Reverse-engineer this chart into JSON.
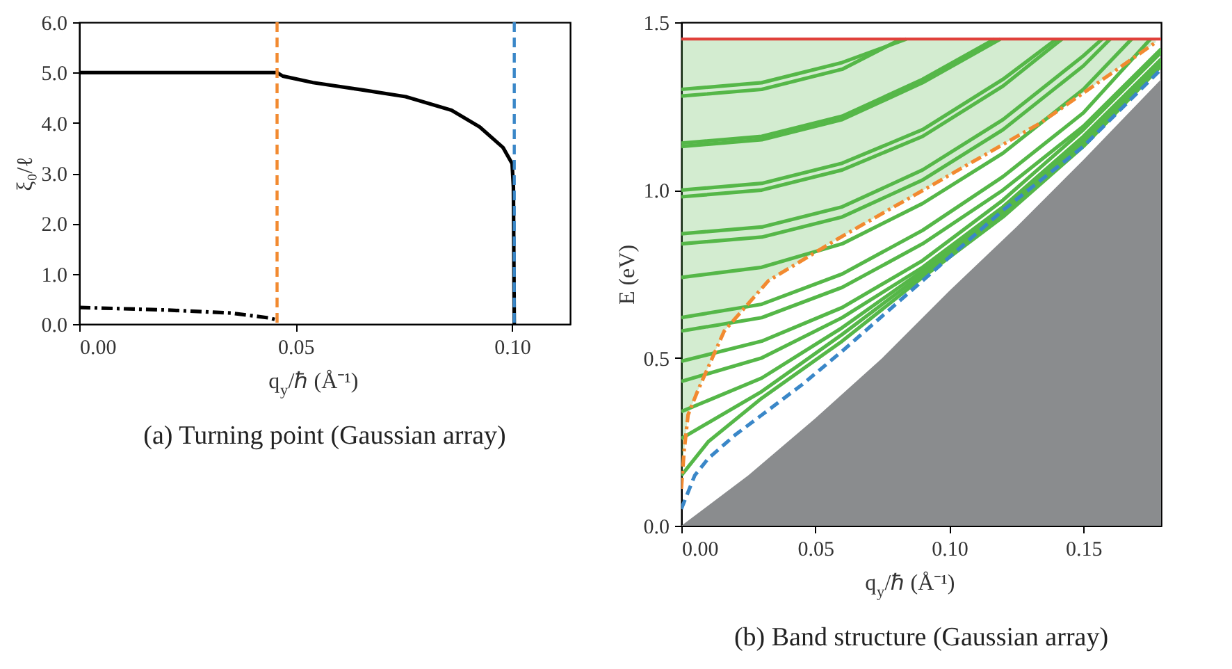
{
  "chart_data": [
    {
      "type": "line",
      "title": "(a) Turning point (Gaussian array)",
      "xlabel": "q$_{y}$/ℏ (Å⁻¹)",
      "ylabel": "ξ₀/ℓ",
      "xlim": [
        0,
        0.1134
      ],
      "ylim": [
        0,
        6
      ],
      "xticks": [
        {
          "value": 0,
          "label": "0.00"
        },
        {
          "value": 0.05,
          "label": "0.05"
        },
        {
          "value": 0.1,
          "label": "0.10"
        }
      ],
      "yticks": [
        {
          "value": 0,
          "label": "0.0"
        },
        {
          "value": 1,
          "label": "1.0"
        },
        {
          "value": 2,
          "label": "2.0"
        },
        {
          "value": 3,
          "label": "3.0"
        },
        {
          "value": 4,
          "label": "4.0"
        },
        {
          "value": 5,
          "label": "5.0"
        },
        {
          "value": 6,
          "label": "6.0"
        }
      ],
      "grid": false,
      "series": [
        {
          "color": "#000000",
          "line_style": "solid",
          "x": [
            0,
            0.0457,
            0.047,
            0.054,
            0.065,
            0.0754,
            0.086,
            0.0925,
            0.0979,
            0.1,
            0.1003,
            0.1005
          ],
          "values": [
            5.0,
            5.0,
            4.93,
            4.8,
            4.66,
            4.52,
            4.25,
            3.92,
            3.51,
            3.19,
            2.72,
            0
          ]
        },
        {
          "color": "#000000",
          "line_style": "dashdot",
          "x": [
            0,
            0.02,
            0.035,
            0.044,
            0.0457
          ],
          "values": [
            0.33,
            0.28,
            0.22,
            0.12,
            0.08
          ]
        }
      ],
      "ref_lines": [
        {
          "axis": "x",
          "value": 0.0457,
          "color": "#f28a30",
          "line_style": "dashed"
        },
        {
          "axis": "x",
          "value": 0.1005,
          "color": "#3a87c8",
          "line_style": "dashed"
        }
      ]
    },
    {
      "type": "line",
      "title": "(b) Band structure (Gaussian array)",
      "xlabel": "q$_{y}$/ℏ (Å⁻¹)",
      "ylabel": "E (eV)",
      "xlim": [
        0,
        0.179
      ],
      "ylim": [
        0,
        1.5
      ],
      "xticks": [
        {
          "value": 0,
          "label": "0.00"
        },
        {
          "value": 0.05,
          "label": "0.05"
        },
        {
          "value": 0.1,
          "label": "0.10"
        },
        {
          "value": 0.15,
          "label": "0.15"
        }
      ],
      "yticks": [
        {
          "value": 0,
          "label": "0.0"
        },
        {
          "value": 0.5,
          "label": "0.5"
        },
        {
          "value": 1,
          "label": "1.0"
        },
        {
          "value": 1.5,
          "label": "1.5"
        }
      ],
      "grid": false,
      "series": [
        {
          "type": "area",
          "color": "#8a8c8e",
          "x": [
            0,
            0.025,
            0.05,
            0.075,
            0.1,
            0.125,
            0.15,
            0.179
          ],
          "values": [
            0,
            0.15,
            0.32,
            0.5,
            0.7,
            0.89,
            1.09,
            1.33
          ]
        },
        {
          "color": "#55b748",
          "line_style": "solid",
          "x": [
            0,
            0.03,
            0.06,
            0.084
          ],
          "values": [
            1.3,
            1.32,
            1.38,
            1.45
          ]
        },
        {
          "color": "#55b748",
          "line_style": "solid",
          "x": [
            0,
            0.03,
            0.06,
            0.082
          ],
          "values": [
            1.28,
            1.3,
            1.36,
            1.45
          ]
        },
        {
          "color": "#55b748",
          "line_style": "solid",
          "x": [
            0,
            0.03,
            0.06,
            0.09,
            0.117
          ],
          "values": [
            1.14,
            1.16,
            1.22,
            1.33,
            1.45
          ]
        },
        {
          "color": "#55b748",
          "line_style": "solid",
          "x": [
            0,
            0.03,
            0.06,
            0.09,
            0.119
          ],
          "values": [
            1.13,
            1.15,
            1.21,
            1.32,
            1.45
          ]
        },
        {
          "color": "#55b748",
          "line_style": "solid",
          "x": [
            0,
            0.03,
            0.06,
            0.09,
            0.12,
            0.14
          ],
          "values": [
            1.0,
            1.02,
            1.08,
            1.18,
            1.33,
            1.45
          ]
        },
        {
          "color": "#55b748",
          "line_style": "solid",
          "x": [
            0,
            0.03,
            0.06,
            0.09,
            0.12,
            0.142
          ],
          "values": [
            0.98,
            1.0,
            1.06,
            1.16,
            1.31,
            1.45
          ]
        },
        {
          "color": "#55b748",
          "line_style": "solid",
          "x": [
            0,
            0.03,
            0.06,
            0.09,
            0.12,
            0.15,
            0.157
          ],
          "values": [
            0.87,
            0.89,
            0.95,
            1.06,
            1.21,
            1.4,
            1.45
          ]
        },
        {
          "color": "#55b748",
          "line_style": "solid",
          "x": [
            0,
            0.03,
            0.06,
            0.09,
            0.12,
            0.15,
            0.16
          ],
          "values": [
            0.84,
            0.86,
            0.92,
            1.03,
            1.18,
            1.37,
            1.45
          ]
        },
        {
          "color": "#55b748",
          "line_style": "solid",
          "x": [
            0,
            0.03,
            0.06,
            0.09,
            0.12,
            0.15,
            0.168
          ],
          "values": [
            0.74,
            0.77,
            0.84,
            0.96,
            1.11,
            1.3,
            1.45
          ]
        },
        {
          "color": "#55b748",
          "line_style": "solid",
          "x": [
            0,
            0.03,
            0.06,
            0.09,
            0.12,
            0.15,
            0.175
          ],
          "values": [
            0.62,
            0.66,
            0.75,
            0.88,
            1.04,
            1.23,
            1.45
          ]
        },
        {
          "color": "#55b748",
          "line_style": "solid",
          "x": [
            0,
            0.03,
            0.06,
            0.09,
            0.12,
            0.15,
            0.179
          ],
          "values": [
            0.58,
            0.62,
            0.71,
            0.84,
            1.0,
            1.19,
            1.42
          ]
        },
        {
          "color": "#55b748",
          "line_style": "solid",
          "x": [
            0,
            0.03,
            0.06,
            0.09,
            0.12,
            0.15,
            0.179
          ],
          "values": [
            0.49,
            0.55,
            0.65,
            0.79,
            0.97,
            1.18,
            1.41
          ]
        },
        {
          "color": "#55b748",
          "line_style": "solid",
          "x": [
            0,
            0.03,
            0.06,
            0.09,
            0.12,
            0.15,
            0.179
          ],
          "values": [
            0.43,
            0.5,
            0.62,
            0.77,
            0.95,
            1.16,
            1.39
          ]
        },
        {
          "color": "#55b748",
          "line_style": "solid",
          "x": [
            0,
            0.03,
            0.06,
            0.09,
            0.12,
            0.15,
            0.179
          ],
          "values": [
            0.34,
            0.44,
            0.59,
            0.76,
            0.94,
            1.15,
            1.38
          ]
        },
        {
          "color": "#55b748",
          "line_style": "solid",
          "x": [
            0,
            0.03,
            0.06,
            0.09,
            0.12,
            0.15,
            0.179
          ],
          "values": [
            0.26,
            0.4,
            0.57,
            0.75,
            0.93,
            1.14,
            1.37
          ]
        },
        {
          "color": "#55b748",
          "line_style": "solid",
          "x": [
            0,
            0.01,
            0.03,
            0.06,
            0.09,
            0.12,
            0.15,
            0.179
          ],
          "values": [
            0.15,
            0.25,
            0.38,
            0.55,
            0.74,
            0.92,
            1.13,
            1.37
          ]
        },
        {
          "color": "#f28a30",
          "line_style": "dashdot",
          "x": [
            0,
            0.001,
            0.0025,
            0.006,
            0.016,
            0.0325,
            0.0595,
            0.0925,
            0.134,
            0.177
          ],
          "values": [
            0.11,
            0.22,
            0.33,
            0.4,
            0.58,
            0.73,
            0.86,
            1.01,
            1.2,
            1.44
          ],
          "lower": [
            0.11,
            0.22,
            0.33,
            0.4,
            0.58,
            0.73,
            0.86,
            1.01,
            1.2,
            1.44
          ],
          "upper": [
            1.45,
            1.45,
            1.45,
            1.45,
            1.45,
            1.45,
            1.45,
            1.45,
            1.45,
            1.45
          ]
        },
        {
          "color": "#3a87c8",
          "line_style": "dashed",
          "x": [
            0,
            0.005,
            0.01,
            0.02,
            0.03,
            0.045,
            0.06,
            0.08,
            0.1,
            0.12,
            0.15,
            0.179
          ],
          "values": [
            0.05,
            0.15,
            0.2,
            0.27,
            0.33,
            0.42,
            0.52,
            0.66,
            0.8,
            0.94,
            1.13,
            1.36
          ]
        }
      ],
      "ref_lines": [
        {
          "axis": "y",
          "value": 1.45,
          "color": "#e0403a",
          "line_style": "solid"
        }
      ]
    }
  ]
}
